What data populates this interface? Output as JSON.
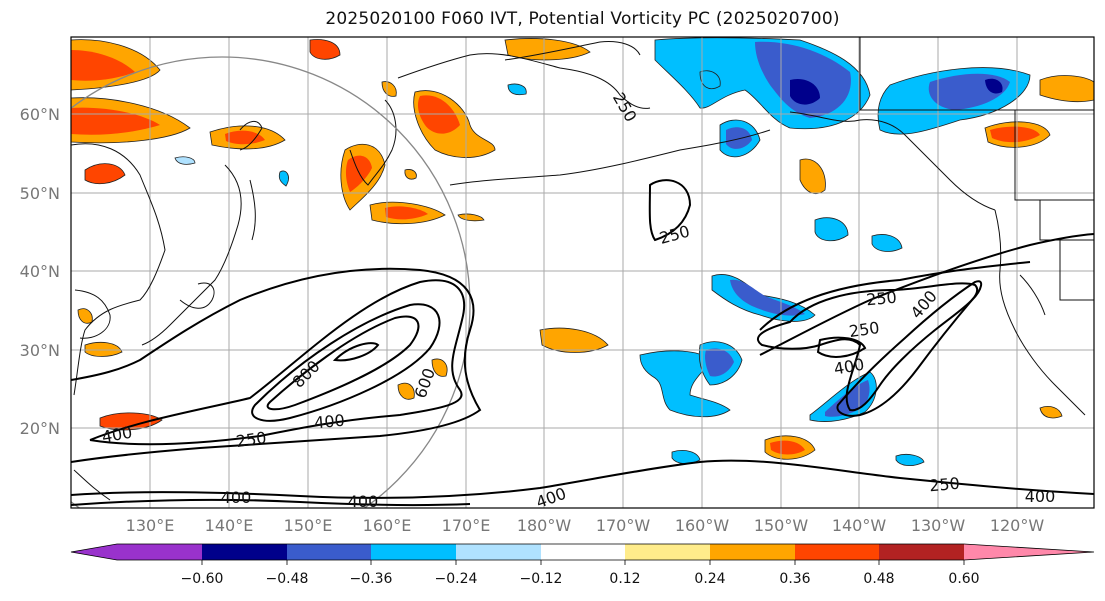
{
  "title": "2025020100 F060 IVT, Potential Vorticity PC (2025020700)",
  "latitude_labels": [
    "60°N",
    "50°N",
    "40°N",
    "30°N",
    "20°N"
  ],
  "longitude_labels": [
    "130°E",
    "140°E",
    "150°E",
    "160°E",
    "170°E",
    "180°W",
    "170°W",
    "160°W",
    "150°W",
    "140°W",
    "130°W",
    "120°W"
  ],
  "contour_labels": [
    {
      "value": "250"
    },
    {
      "value": "250"
    },
    {
      "value": "250"
    },
    {
      "value": "400"
    },
    {
      "value": "800"
    },
    {
      "value": "400"
    },
    {
      "value": "600"
    },
    {
      "value": "250"
    },
    {
      "value": "400"
    },
    {
      "value": "400"
    },
    {
      "value": "400"
    },
    {
      "value": "250"
    },
    {
      "value": "250"
    },
    {
      "value": "400"
    },
    {
      "value": "400"
    },
    {
      "value": "400"
    }
  ],
  "colorbar": {
    "ticks": [
      "−0.60",
      "−0.48",
      "−0.36",
      "−0.24",
      "−0.12",
      "0.12",
      "0.24",
      "0.36",
      "0.48",
      "0.60"
    ],
    "colors": [
      "#9932cc",
      "#00008b",
      "#3a5ccc",
      "#00bfff",
      "#b0e2ff",
      "#ffffff",
      "#ffec8b",
      "#ffa500",
      "#ff4500",
      "#b22222",
      "#ff88aa"
    ]
  }
}
